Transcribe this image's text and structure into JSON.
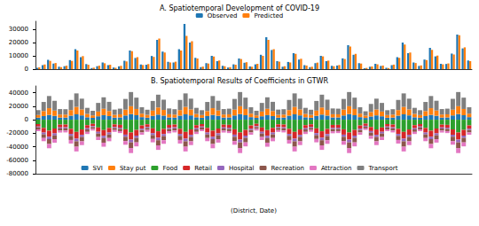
{
  "chart_data": [
    {
      "type": "bar",
      "title": "A. Spatiotemporal Development of COVID-19",
      "categories": [
        null,
        null,
        null,
        null,
        null,
        null,
        null,
        null,
        null,
        null,
        null,
        null,
        null,
        null,
        null,
        null,
        null,
        null,
        null,
        null,
        null,
        null,
        null,
        null,
        null,
        null,
        null,
        null,
        null,
        null,
        null,
        null,
        null,
        null,
        null,
        null,
        null,
        null,
        null,
        null,
        null,
        null,
        null,
        null,
        null,
        null,
        null,
        null,
        null,
        null,
        null,
        null,
        null,
        null,
        null,
        null,
        null,
        null,
        null,
        null,
        null,
        null,
        null,
        null,
        null,
        null,
        null,
        null,
        null,
        null,
        null,
        null,
        null,
        null,
        null,
        null,
        null,
        null,
        null,
        null
      ],
      "series": [
        {
          "name": "Observed",
          "color": "#1f77b4",
          "values": [
            1000,
            3000,
            7000,
            4200,
            1800,
            2200,
            6800,
            15000,
            9000,
            3800,
            800,
            2200,
            5000,
            3000,
            1200,
            2100,
            6300,
            14000,
            8400,
            3500,
            3300,
            9900,
            22000,
            13200,
            5500,
            5000,
            15000,
            34000,
            20000,
            8500,
            1500,
            4500,
            10000,
            6000,
            2500,
            1200,
            3600,
            8000,
            4800,
            2000,
            3600,
            10800,
            24000,
            14400,
            6000,
            1800,
            5400,
            12000,
            7200,
            3000,
            1500,
            4500,
            10000,
            6000,
            2500,
            2700,
            8100,
            18000,
            10800,
            4500,
            600,
            1800,
            4000,
            2400,
            1000,
            3000,
            9000,
            20000,
            12000,
            5000,
            2400,
            7200,
            16000,
            9600,
            4000,
            3900,
            11700,
            26000,
            15600,
            6500
          ]
        },
        {
          "name": "Predicted",
          "color": "#ff7f0e",
          "values": [
            1400,
            3500,
            6200,
            4600,
            1500,
            2600,
            6200,
            14000,
            9800,
            3300,
            1100,
            2600,
            4400,
            3300,
            1000,
            2500,
            5800,
            13500,
            9000,
            3100,
            3800,
            9200,
            23000,
            12500,
            5000,
            5600,
            14000,
            25000,
            21000,
            8000,
            1900,
            4200,
            9500,
            6500,
            2200,
            1500,
            3300,
            7600,
            5200,
            1800,
            4000,
            10000,
            22000,
            15000,
            5600,
            2200,
            5000,
            11500,
            7800,
            2700,
            1800,
            4900,
            9600,
            6400,
            2200,
            3100,
            7600,
            17000,
            11500,
            4200,
            900,
            2000,
            3600,
            2700,
            800,
            3400,
            8500,
            18500,
            12500,
            4600,
            2800,
            6800,
            14500,
            10200,
            3600,
            4300,
            11000,
            25500,
            16400,
            6000
          ]
        }
      ],
      "ylim": [
        0,
        36000
      ],
      "yticks": [
        0,
        10000,
        20000,
        30000
      ],
      "grid": false,
      "legend": "upper center",
      "tick_labels": "y"
    },
    {
      "type": "bar",
      "title": "B. Spatiotemporal Results of Coefficients in GTWR",
      "x_label": "(District, Date)",
      "categories": [
        null,
        null,
        null,
        null,
        null,
        null,
        null,
        null,
        null,
        null,
        null,
        null,
        null,
        null,
        null,
        null,
        null,
        null,
        null,
        null,
        null,
        null,
        null,
        null,
        null,
        null,
        null,
        null,
        null,
        null,
        null,
        null,
        null,
        null,
        null,
        null,
        null,
        null,
        null,
        null,
        null,
        null,
        null,
        null,
        null,
        null,
        null,
        null,
        null,
        null,
        null,
        null,
        null,
        null,
        null,
        null,
        null,
        null,
        null,
        null,
        null,
        null,
        null,
        null,
        null,
        null,
        null,
        null,
        null,
        null,
        null,
        null,
        null,
        null,
        null,
        null,
        null,
        null,
        null,
        null
      ],
      "series": [
        {
          "name": "SVI",
          "color": "#1f77b4",
          "values": [
            2900,
            5400,
            7200,
            5800,
            3200,
            3200,
            6000,
            8000,
            6400,
            3600,
            2700,
            5100,
            6800,
            5400,
            3100,
            3400,
            6300,
            8400,
            6700,
            3800,
            3000,
            5700,
            7600,
            6100,
            3400,
            3200,
            6000,
            8000,
            6400,
            3600,
            2900,
            5400,
            7200,
            5800,
            3200,
            3400,
            6300,
            8400,
            6700,
            3800,
            2700,
            5100,
            6800,
            5400,
            3100,
            3200,
            6000,
            8000,
            6400,
            3600,
            3000,
            5700,
            7600,
            6100,
            3400,
            3400,
            6300,
            8400,
            6700,
            3800,
            2600,
            4800,
            6400,
            5100,
            2900,
            3200,
            6000,
            8000,
            6400,
            3600,
            2900,
            5400,
            7200,
            5800,
            3200,
            3400,
            6300,
            8400,
            6700,
            3800
          ]
        },
        {
          "name": "Stay put",
          "color": "#ff7f0e",
          "values": [
            4000,
            7400,
            9900,
            7900,
            4500,
            4400,
            8300,
            11000,
            8800,
            5000,
            3700,
            7000,
            9400,
            7500,
            4200,
            4600,
            8700,
            11600,
            9200,
            5200,
            4200,
            7800,
            10500,
            8400,
            4700,
            4400,
            8300,
            11000,
            8800,
            5000,
            4000,
            7400,
            9900,
            7900,
            4500,
            4600,
            8700,
            11600,
            9200,
            5200,
            3700,
            7000,
            9400,
            7500,
            4200,
            4400,
            8300,
            11000,
            8800,
            5000,
            4200,
            7800,
            10500,
            8400,
            4700,
            4600,
            8700,
            11600,
            9200,
            5200,
            3500,
            6600,
            8800,
            7000,
            4000,
            4400,
            8300,
            11000,
            8800,
            5000,
            4000,
            7400,
            9900,
            7900,
            4500,
            4600,
            8700,
            11600,
            9200,
            5200
          ]
        },
        {
          "name": "Food",
          "color": "#2ca02c",
          "values": [
            -6500,
            -12200,
            -16200,
            -13000,
            -7300,
            -7200,
            -13500,
            -18000,
            -14400,
            -8100,
            -6100,
            -11500,
            -15300,
            -12200,
            -6900,
            -7600,
            -14200,
            -18900,
            -15100,
            -8500,
            -6800,
            -12800,
            -17100,
            -13700,
            -7700,
            -7200,
            -13500,
            -18000,
            -14400,
            -8100,
            -6500,
            -12200,
            -16200,
            -13000,
            -7300,
            -7600,
            -14200,
            -18900,
            -15100,
            -8500,
            -6100,
            -11500,
            -15300,
            -12200,
            -6900,
            -7200,
            -13500,
            -18000,
            -14400,
            -8100,
            -6800,
            -12800,
            -17100,
            -13700,
            -7700,
            -7600,
            -14200,
            -18900,
            -15100,
            -8500,
            -5800,
            -10800,
            -14400,
            -11500,
            -6500,
            -7200,
            -13500,
            -18000,
            -14400,
            -8100,
            -6500,
            -12200,
            -16200,
            -13000,
            -7300,
            -7600,
            -14200,
            -18900,
            -15100,
            -8500
          ]
        },
        {
          "name": "Retail",
          "color": "#d62728",
          "values": [
            -3600,
            -6800,
            -9000,
            -7200,
            -4100,
            -4000,
            -7500,
            -10000,
            -8000,
            -4500,
            -3400,
            -6400,
            -8500,
            -6800,
            -3800,
            -4200,
            -7900,
            -10500,
            -8400,
            -4700,
            -3800,
            -7100,
            -9500,
            -7600,
            -4300,
            -4000,
            -7500,
            -10000,
            -8000,
            -4500,
            -3600,
            -6800,
            -9000,
            -7200,
            -4100,
            -4200,
            -7900,
            -10500,
            -8400,
            -4700,
            -3400,
            -6400,
            -8500,
            -6800,
            -3800,
            -4000,
            -7500,
            -10000,
            -8000,
            -4500,
            -3800,
            -7100,
            -9500,
            -7600,
            -4300,
            -4200,
            -7900,
            -10500,
            -8400,
            -4700,
            -3200,
            -6000,
            -8000,
            -6400,
            -3600,
            -4000,
            -7500,
            -10000,
            -8000,
            -4500,
            -3600,
            -6800,
            -9000,
            -7200,
            -4100,
            -4200,
            -7900,
            -10500,
            -8400,
            -4700
          ]
        },
        {
          "name": "Hospital",
          "color": "#9467bd",
          "values": [
            -1400,
            -2700,
            -3600,
            -2900,
            -1600,
            -1600,
            -3000,
            -4000,
            -3200,
            -1800,
            -1400,
            -2600,
            -3400,
            -2700,
            -1500,
            -1700,
            -3200,
            -4200,
            -3400,
            -1900,
            -1500,
            -2900,
            -3800,
            -3000,
            -1700,
            -1600,
            -3000,
            -4000,
            -3200,
            -1800,
            -1400,
            -2700,
            -3600,
            -2900,
            -1600,
            -1700,
            -3200,
            -4200,
            -3400,
            -1900,
            -1400,
            -2600,
            -3400,
            -2700,
            -1500,
            -1600,
            -3000,
            -4000,
            -3200,
            -1800,
            -1500,
            -2900,
            -3800,
            -3000,
            -1700,
            -1700,
            -3200,
            -4200,
            -3400,
            -1900,
            -1300,
            -2400,
            -3200,
            -2600,
            -1400,
            -1600,
            -3000,
            -4000,
            -3200,
            -1800,
            -1400,
            -2700,
            -3600,
            -2900,
            -1600,
            -1700,
            -3200,
            -4200,
            -3400,
            -1900
          ]
        },
        {
          "name": "Recreation",
          "color": "#8c564b",
          "values": [
            -2900,
            -5400,
            -7200,
            -5800,
            -3200,
            -3200,
            -6000,
            -8000,
            -6400,
            -3600,
            -2700,
            -5100,
            -6800,
            -5400,
            -3100,
            -3400,
            -6300,
            -8400,
            -6700,
            -3800,
            -3000,
            -5700,
            -7600,
            -6100,
            -3400,
            -3200,
            -6000,
            -8000,
            -6400,
            -3600,
            -2900,
            -5400,
            -7200,
            -5800,
            -3200,
            -3400,
            -6300,
            -8400,
            -6700,
            -3800,
            -2700,
            -5100,
            -6800,
            -5400,
            -3100,
            -3200,
            -6000,
            -8000,
            -6400,
            -3600,
            -3000,
            -5700,
            -7600,
            -6100,
            -3400,
            -3400,
            -6300,
            -8400,
            -6700,
            -3800,
            -2600,
            -4800,
            -6400,
            -5100,
            -2900,
            -3200,
            -6000,
            -8000,
            -6400,
            -3600,
            -2900,
            -5400,
            -7200,
            -5800,
            -3200,
            -3400,
            -6300,
            -8400,
            -6700,
            -3800
          ]
        },
        {
          "name": "Attraction",
          "color": "#e377c2",
          "values": [
            -2500,
            -4700,
            -6300,
            -5000,
            -2800,
            -2800,
            -5300,
            -7000,
            -5600,
            -3200,
            -2400,
            -4500,
            -6000,
            -4800,
            -2700,
            -2900,
            -5500,
            -7400,
            -5900,
            -3300,
            -2700,
            -5000,
            -6700,
            -5300,
            -3000,
            -2800,
            -5300,
            -7000,
            -5600,
            -3200,
            -2500,
            -4700,
            -6300,
            -5000,
            -2800,
            -2900,
            -5500,
            -7400,
            -5900,
            -3300,
            -2400,
            -4500,
            -6000,
            -4800,
            -2700,
            -2800,
            -5300,
            -7000,
            -5600,
            -3200,
            -2700,
            -5000,
            -6700,
            -5300,
            -3000,
            -2900,
            -5500,
            -7400,
            -5900,
            -3300,
            -2200,
            -4200,
            -5600,
            -4500,
            -2500,
            -2800,
            -5300,
            -7000,
            -5600,
            -3200,
            -2500,
            -4700,
            -6300,
            -5000,
            -2800,
            -2900,
            -5500,
            -7400,
            -5900,
            -3300
          ]
        },
        {
          "name": "Transport",
          "color": "#7f7f7f",
          "values": [
            7200,
            13500,
            18000,
            14400,
            8100,
            8000,
            15000,
            20000,
            16000,
            9000,
            6800,
            12800,
            17000,
            13600,
            7700,
            8400,
            15800,
            21000,
            16800,
            9500,
            7600,
            14300,
            19000,
            15200,
            8600,
            8000,
            15000,
            20000,
            16000,
            9000,
            7200,
            13500,
            18000,
            14400,
            8100,
            8400,
            15800,
            21000,
            16800,
            9500,
            6800,
            12800,
            17000,
            13600,
            7700,
            8000,
            15000,
            20000,
            16000,
            9000,
            7600,
            14300,
            19000,
            15200,
            8600,
            8400,
            15800,
            21000,
            16800,
            9500,
            6400,
            12000,
            16000,
            12800,
            7200,
            8000,
            15000,
            20000,
            16000,
            9000,
            7200,
            13500,
            18000,
            14400,
            8100,
            8400,
            15800,
            21000,
            16800,
            9500
          ]
        }
      ],
      "ylim": [
        -80000,
        50000
      ],
      "yticks": [
        -80000,
        -60000,
        -40000,
        -20000,
        0,
        20000,
        40000
      ],
      "stacked": true,
      "grid": false,
      "legend": "lower center",
      "tick_labels": "y"
    }
  ]
}
